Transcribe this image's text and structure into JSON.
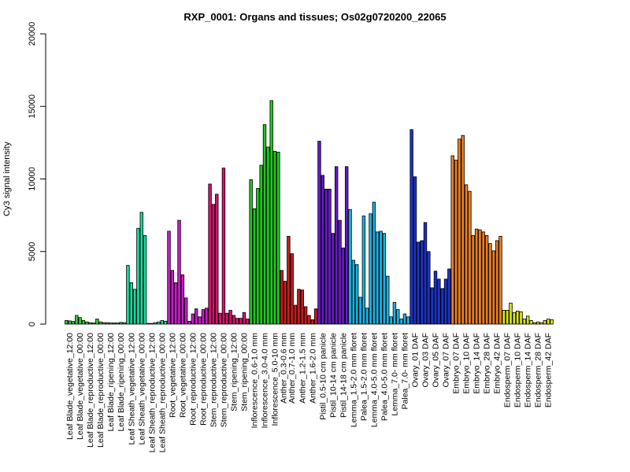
{
  "chart_data": {
    "type": "bar",
    "title": "RXP_0001: Organs and tissues; Os02g0720200_22065",
    "xlabel": "",
    "ylabel": "Cy3 signal intensity",
    "ylim": [
      0,
      20000
    ],
    "yticks": [
      0,
      5000,
      10000,
      15000,
      20000
    ],
    "grid": false,
    "groups": [
      {
        "label": "Leaf Blade_vegetative_12:00",
        "color": "#33CC33",
        "values": [
          250,
          220,
          180
        ],
        "show_label": true
      },
      {
        "label": "Leaf Blade_vegetative_00:00",
        "color": "#33CC33",
        "values": [
          600,
          450,
          250
        ],
        "show_label": true
      },
      {
        "label": "Leaf Blade_reproductive_12:00",
        "color": "#33CC33",
        "values": [
          150,
          100,
          80
        ],
        "show_label": true
      },
      {
        "label": "Leaf Blade_reproductive_00:00",
        "color": "#33CC33",
        "values": [
          350,
          150,
          100
        ],
        "show_label": true
      },
      {
        "label": "Leaf Blade_ripening_12:00",
        "color": "#33CC33",
        "values": [
          100,
          80,
          80
        ],
        "show_label": true
      },
      {
        "label": "Leaf Blade_ripening_00:00",
        "color": "#33CC33",
        "values": [
          80,
          120,
          100
        ],
        "show_label": true
      },
      {
        "label": "Leaf Sheath_vegetative_12:00",
        "color": "#1ADB9E",
        "values": [
          4050,
          2850,
          2400
        ],
        "show_label": true
      },
      {
        "label": "Leaf Sheath_vegetative_00:00",
        "color": "#1ADB9E",
        "values": [
          6600,
          7700,
          6100
        ],
        "show_label": true
      },
      {
        "label": "Leaf Sheath_reproductive_12:00",
        "color": "#1ADB9E",
        "values": [
          50,
          50,
          100
        ],
        "show_label": true
      },
      {
        "label": "Leaf Sheath_reproductive_00:00",
        "color": "#1ADB9E",
        "values": [
          150,
          250,
          200
        ],
        "show_label": true
      },
      {
        "label": "Root_vegetative_12:00",
        "color": "#CC1ACC",
        "values": [
          6400,
          3700,
          2850
        ],
        "show_label": true
      },
      {
        "label": "Root_vegetative_00:00",
        "color": "#CC1ACC",
        "values": [
          7150,
          3400,
          1800
        ],
        "show_label": true
      },
      {
        "label": "Root_reproductive_12:00",
        "color": "#CC1ACC",
        "values": [
          200,
          700,
          1050
        ],
        "show_label": true
      },
      {
        "label": "Root_reproductive_00:00",
        "color": "#CC1ACC",
        "values": [
          500,
          1000,
          1100
        ],
        "show_label": true
      },
      {
        "label": "Stem_reproductive_12:00",
        "color": "#D6136B",
        "values": [
          9650,
          8250,
          8950
        ],
        "show_label": true
      },
      {
        "label": "Stem_reproductive_00:00",
        "color": "#D6136B",
        "values": [
          750,
          10750,
          750
        ],
        "show_label": true
      },
      {
        "label": "Stem_ripening_12:00",
        "color": "#D6136B",
        "values": [
          950,
          600,
          400
        ],
        "show_label": true
      },
      {
        "label": "Stem_ripening_00:00",
        "color": "#D6136B",
        "values": [
          400,
          800,
          350
        ],
        "show_label": true
      },
      {
        "label": "Inflorescence_0.6-1.0 mm",
        "color": "#1ACC1A",
        "values": [
          9950,
          7950,
          9350
        ],
        "show_label": true
      },
      {
        "label": "Inflorescence_3.0-4.0 mm",
        "color": "#1ACC1A",
        "values": [
          10950,
          13750,
          12200
        ],
        "show_label": true
      },
      {
        "label": "Inflorescence_5.0-10 mm",
        "color": "#1ACC1A",
        "values": [
          15400,
          11900,
          11850
        ],
        "show_label": true
      },
      {
        "label": "Anther_0.3-0.6 mm",
        "color": "#CC1A1A",
        "values": [
          3700,
          2950
        ],
        "show_label": true
      },
      {
        "label": "Anther_0.7-1.0 mm",
        "color": "#CC1A1A",
        "values": [
          6050,
          4850,
          1300
        ],
        "show_label": true
      },
      {
        "label": "Anther_1.2-1.5 mm",
        "color": "#CC1A1A",
        "values": [
          2400,
          2350,
          1200
        ],
        "show_label": true
      },
      {
        "label": "Anther_1.6-2.0 mm",
        "color": "#CC1A1A",
        "values": [
          600,
          300,
          1050
        ],
        "show_label": true
      },
      {
        "label": "Pistil_0.5-10 cm panicle",
        "color": "#6619CC",
        "values": [
          12600,
          10250,
          9300
        ],
        "show_label": true
      },
      {
        "label": "Pistil_10-14 cm panicle",
        "color": "#6619CC",
        "values": [
          9300,
          6250,
          10850
        ],
        "show_label": true
      },
      {
        "label": "Pistil_14-18 cm panicle",
        "color": "#6619CC",
        "values": [
          7150,
          5250,
          10850
        ],
        "show_label": true
      },
      {
        "label": "Lemma_1.5-2.0 mm floret",
        "color": "#19B3E6",
        "values": [
          7900,
          4400,
          4100
        ],
        "show_label": true
      },
      {
        "label": "Palea_1.5-2.0 mm floret",
        "color": "#19B3E6",
        "values": [
          1850,
          7450,
          1100
        ],
        "show_label": true
      },
      {
        "label": "Lemma_4.0-5.0 mm floret",
        "color": "#19B3E6",
        "values": [
          7600,
          8400,
          6350
        ],
        "show_label": true
      },
      {
        "label": "Palea_4.0-5.0 mm floret",
        "color": "#19B3E6",
        "values": [
          6400,
          6250,
          3300
        ],
        "show_label": true
      },
      {
        "label": "Lemma_7.0- mm floret",
        "color": "#19B3E6",
        "values": [
          500,
          1500,
          1000
        ],
        "show_label": true
      },
      {
        "label": "Palea_7.0- mm floret",
        "color": "#19B3E6",
        "values": [
          350,
          700,
          500
        ],
        "show_label": true
      },
      {
        "label": "Ovary_01 DAF",
        "color": "#1A33CC",
        "values": [
          13400,
          10150,
          5650
        ],
        "show_label": true
      },
      {
        "label": "Ovary_03 DAF",
        "color": "#1A33CC",
        "values": [
          5750,
          7000,
          5000
        ],
        "show_label": true
      },
      {
        "label": "Ovary_05 DAF",
        "color": "#1A33CC",
        "values": [
          2500,
          3650,
          3100
        ],
        "show_label": true
      },
      {
        "label": "Ovary_07 DAF",
        "color": "#1A33CC",
        "values": [
          2450,
          3100,
          3800
        ],
        "show_label": true
      },
      {
        "label": "Embryo_07 DAF",
        "color": "#EE7F1F",
        "values": [
          11600,
          11300,
          12750
        ],
        "show_label": true
      },
      {
        "label": "Embryo_10 DAF",
        "color": "#EE7F1F",
        "values": [
          13000,
          9600,
          9150
        ],
        "show_label": true
      },
      {
        "label": "Embryo_14 DAF",
        "color": "#EE7F1F",
        "values": [
          6100,
          6550,
          6500
        ],
        "show_label": true
      },
      {
        "label": "Embryo_28 DAF",
        "color": "#EE7F1F",
        "values": [
          6350,
          6100,
          5550
        ],
        "show_label": true
      },
      {
        "label": "Embryo_42 DAF",
        "color": "#EE7F1F",
        "values": [
          5050,
          5750,
          6050
        ],
        "show_label": true
      },
      {
        "label": "Endosperm_07 DAF",
        "color": "#D6E619",
        "values": [
          950,
          950,
          1450
        ],
        "show_label": true
      },
      {
        "label": "Endosperm_10 DAF",
        "color": "#D6E619",
        "values": [
          800,
          900,
          850
        ],
        "show_label": true
      },
      {
        "label": "Endosperm_14 DAF",
        "color": "#D6E619",
        "values": [
          350,
          550,
          250
        ],
        "show_label": true
      },
      {
        "label": "Endosperm_28 DAF",
        "color": "#D6E619",
        "values": [
          100,
          150,
          100
        ],
        "show_label": true
      },
      {
        "label": "Endosperm_42 DAF",
        "color": "#D6E619",
        "values": [
          250,
          350,
          300
        ],
        "show_label": true
      }
    ]
  }
}
